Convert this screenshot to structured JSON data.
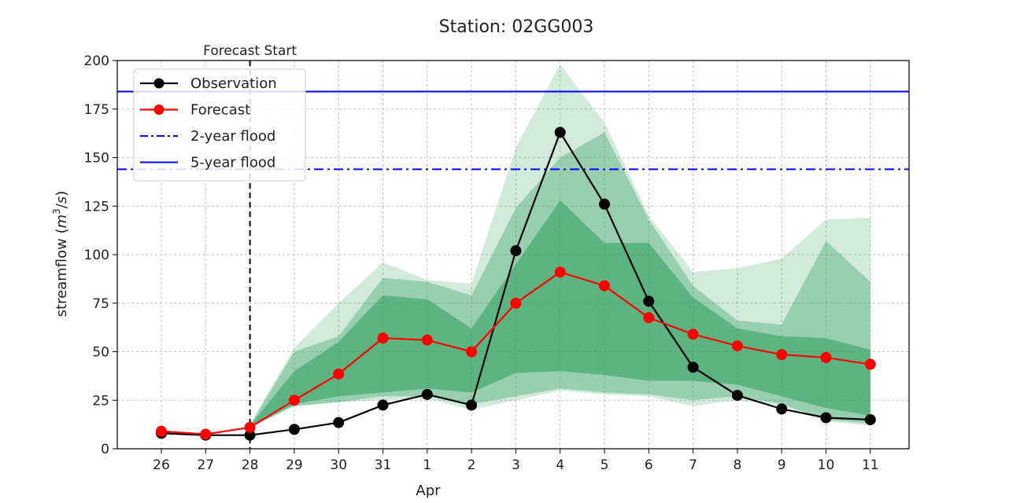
{
  "chart_data": {
    "type": "line",
    "title": "Station: 02GG003",
    "xlabel": "Apr",
    "ylabel": "streamflow (m³/s)",
    "ylabel_parts": [
      "streamflow (",
      "m",
      "3",
      "/",
      "s",
      ")"
    ],
    "ylim": [
      0,
      200
    ],
    "yticks": [
      0,
      25,
      50,
      75,
      100,
      125,
      150,
      175,
      200
    ],
    "categories": [
      "26",
      "27",
      "28",
      "29",
      "30",
      "31",
      "1",
      "2",
      "3",
      "4",
      "5",
      "6",
      "7",
      "8",
      "9",
      "10",
      "11"
    ],
    "grid": true,
    "legend_position": "top-left",
    "series": [
      {
        "name": "Observation",
        "color": "#000000",
        "marker": "circle",
        "values": [
          8,
          7,
          7,
          10,
          13.5,
          22.5,
          28,
          22.5,
          102,
          163,
          126,
          76,
          42,
          27.5,
          20.5,
          16,
          15
        ]
      },
      {
        "name": "Forecast",
        "color": "#ff0000",
        "marker": "circle",
        "values": [
          9,
          7.5,
          11,
          25,
          38.5,
          57,
          56,
          50,
          75,
          91,
          84,
          67.5,
          59,
          53,
          48.5,
          47,
          43.5
        ]
      }
    ],
    "bands": [
      {
        "name": "outer",
        "color": "#2e9e5b",
        "opacity": 0.22,
        "lower": [
          null,
          null,
          11,
          22,
          24,
          25,
          26,
          20,
          25,
          30,
          28,
          27,
          22,
          25,
          22,
          14,
          12
        ],
        "upper": [
          null,
          null,
          13,
          52,
          75,
          96,
          87,
          85,
          155,
          198,
          168,
          120,
          91,
          93,
          98,
          118,
          119
        ]
      },
      {
        "name": "middle",
        "color": "#2e9e5b",
        "opacity": 0.35,
        "lower": [
          null,
          null,
          11,
          22,
          24,
          27,
          27,
          23,
          27,
          31,
          29,
          28,
          25,
          27,
          23,
          15,
          13
        ],
        "upper": [
          null,
          null,
          12,
          50,
          58,
          88,
          86,
          79,
          124,
          150,
          163,
          118,
          84,
          66,
          64,
          107,
          86
        ]
      },
      {
        "name": "inner",
        "color": "#2e9e5b",
        "opacity": 0.55,
        "lower": [
          null,
          null,
          11,
          23,
          27,
          29,
          31,
          29,
          39,
          40,
          38,
          35,
          35,
          33,
          27,
          21,
          17
        ],
        "upper": [
          null,
          null,
          12,
          40,
          55,
          79,
          77,
          62,
          95,
          128,
          106,
          106,
          78,
          62,
          58,
          57,
          51
        ]
      }
    ],
    "hlines": [
      {
        "name": "2-year flood",
        "value": 144,
        "color": "#0000ff",
        "style": "dashdot"
      },
      {
        "name": "5-year flood",
        "value": 184,
        "color": "#0000ff",
        "style": "solid"
      }
    ],
    "vline": {
      "label": "Forecast Start",
      "at_category": "28",
      "color": "#000000",
      "style": "dashed"
    },
    "legend": [
      "Observation",
      "Forecast",
      "2-year flood",
      "5-year flood"
    ]
  }
}
